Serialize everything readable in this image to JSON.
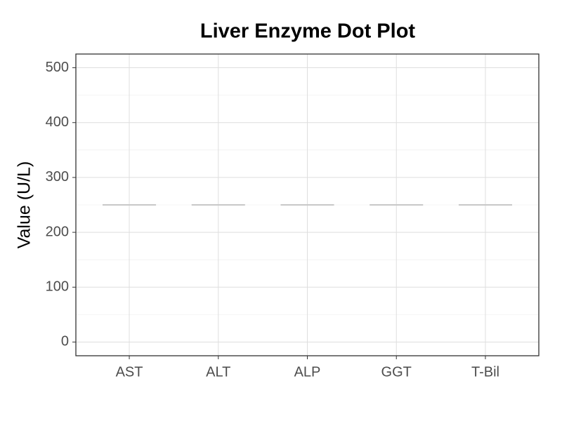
{
  "chart_data": {
    "type": "dot",
    "title": "Liver Enzyme Dot Plot",
    "y_label": "Value (U/L)",
    "categories": [
      "AST",
      "ALT",
      "ALP",
      "GGT",
      "T-Bil"
    ],
    "values": [
      250,
      250,
      250,
      250,
      250
    ],
    "color": "#c8c8c8",
    "ylim": [
      -25,
      525
    ],
    "yticks": [
      0,
      100,
      200,
      300,
      400,
      500
    ],
    "y_minor_ticks": [
      50,
      150,
      250,
      350,
      450
    ],
    "grid": true
  }
}
